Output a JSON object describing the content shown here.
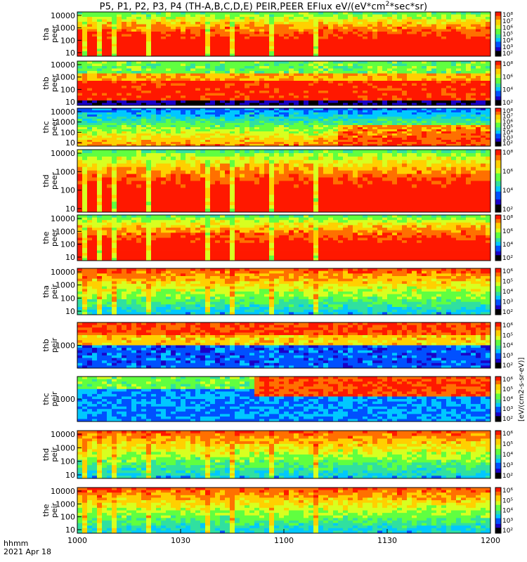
{
  "title": "P5, P1, P2, P3, P4 (TH-A,B,C,D,E) PEIR,PEER EFlux eV/(eV*cm",
  "title_exp": "2",
  "title_tail": "*sec*sr)",
  "footer": {
    "time_label": "hhmm",
    "date_label": "2021 Apr 18"
  },
  "colorbar_unit": "[eV/(cm2-s-sr-eV)]",
  "chart_data": {
    "type": "heatmap",
    "x_ticks": [
      "1000",
      "1030",
      "1100",
      "1130",
      "1200"
    ],
    "x_range": [
      "10:00",
      "12:00"
    ],
    "y_scale": "log",
    "panels": [
      {
        "probe": "tha",
        "species": "peer",
        "yticks": [
          "10",
          "100",
          "1000",
          "10000"
        ],
        "cbar_ticks": [
          "10²",
          "10³",
          "10⁴",
          "10⁵",
          "10⁶",
          "10⁷",
          "10⁸"
        ]
      },
      {
        "probe": "thb",
        "species": "peer",
        "yticks": [
          "10",
          "100",
          "1000",
          "10000"
        ],
        "cbar_ticks": [
          "10²",
          "10⁴",
          "10⁶",
          "10⁸"
        ]
      },
      {
        "probe": "thc",
        "species": "peer",
        "yticks": [
          "10",
          "100",
          "1000",
          "10000"
        ],
        "cbar_ticks": [
          "10²",
          "10³",
          "10⁴",
          "10⁵",
          "10⁶",
          "10⁷",
          "10⁸"
        ]
      },
      {
        "probe": "thd",
        "species": "peer",
        "yticks": [
          "10",
          "100",
          "1000",
          "10000"
        ],
        "cbar_ticks": [
          "10²",
          "10⁴",
          "10⁶",
          "10⁸"
        ]
      },
      {
        "probe": "the",
        "species": "peer",
        "yticks": [
          "10",
          "100",
          "1000",
          "10000"
        ],
        "cbar_ticks": [
          "10²",
          "10⁴",
          "10⁶",
          "10⁸"
        ]
      },
      {
        "probe": "tha",
        "species": "peir",
        "yticks": [
          "10",
          "100",
          "1000",
          "10000"
        ],
        "cbar_ticks": [
          "10²",
          "10³",
          "10⁴",
          "10⁵",
          "10⁶"
        ]
      },
      {
        "probe": "thb",
        "species": "peir",
        "yticks": [
          "1000"
        ],
        "cbar_ticks": [
          "10²",
          "10³",
          "10⁴",
          "10⁵",
          "10⁶"
        ]
      },
      {
        "probe": "thc",
        "species": "peir",
        "yticks": [
          "1000"
        ],
        "cbar_ticks": [
          "10²",
          "10³",
          "10⁴",
          "10⁵",
          "10⁶"
        ]
      },
      {
        "probe": "thd",
        "species": "peir",
        "yticks": [
          "10",
          "100",
          "1000",
          "10000"
        ],
        "cbar_ticks": [
          "10²",
          "10³",
          "10⁴",
          "10⁵",
          "10⁶"
        ]
      },
      {
        "probe": "the",
        "species": "peir",
        "yticks": [
          "10",
          "100",
          "1000",
          "10000"
        ],
        "cbar_ticks": [
          "10²",
          "10³",
          "10⁴",
          "10⁵",
          "10⁶"
        ]
      }
    ],
    "colormap": [
      "#000000",
      "#1a00c8",
      "#0050ff",
      "#00c8ff",
      "#30e0a0",
      "#60ff40",
      "#d8ff20",
      "#ffd000",
      "#ff7000",
      "#ff1800"
    ],
    "dropout_times": [
      "10:01",
      "10:06",
      "10:10",
      "10:20",
      "10:37",
      "10:44",
      "10:56",
      "11:08"
    ]
  }
}
